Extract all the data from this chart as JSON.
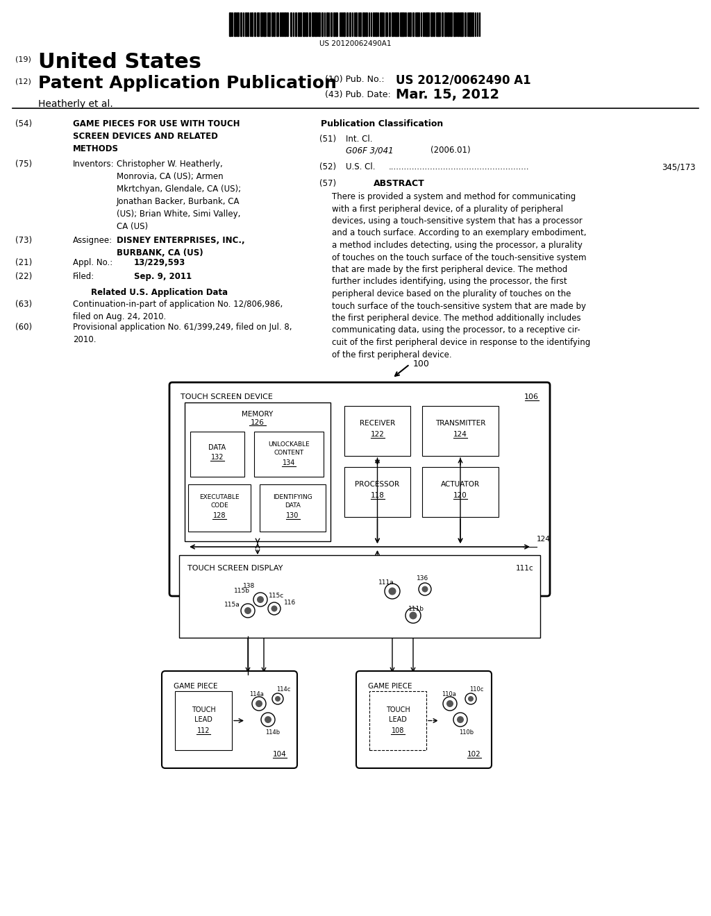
{
  "bg_color": "#ffffff",
  "barcode_text": "US 20120062490A1",
  "title_19": "(19)",
  "title_country": "United States",
  "title_12": "(12)",
  "title_type": "Patent Application Publication",
  "title_inventors_label": "Heatherly et al.",
  "pub_no_label": "(10) Pub. No.:",
  "pub_no_value": "US 2012/0062490 A1",
  "pub_date_label": "(43) Pub. Date:",
  "pub_date_value": "Mar. 15, 2012",
  "field54_label": "(54)",
  "field54_title": "GAME PIECES FOR USE WITH TOUCH\nSCREEN DEVICES AND RELATED\nMETHODS",
  "field75_label": "(75)",
  "field75_title": "Inventors:",
  "field75_text": "Christopher W. Heatherly,\nMonrovia, CA (US); Armen\nMkrtchyan, Glendale, CA (US);\nJonathan Backer, Burbank, CA\n(US); Brian White, Simi Valley,\nCA (US)",
  "field73_label": "(73)",
  "field73_title": "Assignee:",
  "field73_text": "DISNEY ENTERPRISES, INC.,\nBURBANK, CA (US)",
  "field21_label": "(21)",
  "field21_title": "Appl. No.:",
  "field21_value": "13/229,593",
  "field22_label": "(22)",
  "field22_title": "Filed:",
  "field22_value": "Sep. 9, 2011",
  "related_header": "Related U.S. Application Data",
  "field63_label": "(63)",
  "field63_text": "Continuation-in-part of application No. 12/806,986,\nfiled on Aug. 24, 2010.",
  "field60_label": "(60)",
  "field60_text": "Provisional application No. 61/399,249, filed on Jul. 8,\n2010.",
  "pub_class_header": "Publication Classification",
  "field51_label": "(51)",
  "field51_title": "Int. Cl.",
  "field51_class": "G06F 3/041",
  "field51_year": "(2006.01)",
  "field52_label": "(52)",
  "field52_title": "U.S. Cl.",
  "field52_dots": "......................................................",
  "field52_value": "345/173",
  "field57_label": "(57)",
  "field57_title": "ABSTRACT",
  "abstract_text": "There is provided a system and method for communicating\nwith a first peripheral device, of a plurality of peripheral\ndevices, using a touch-sensitive system that has a processor\nand a touch surface. According to an exemplary embodiment,\na method includes detecting, using the processor, a plurality\nof touches on the touch surface of the touch-sensitive system\nthat are made by the first peripheral device. The method\nfurther includes identifying, using the processor, the first\nperipheral device based on the plurality of touches on the\ntouch surface of the touch-sensitive system that are made by\nthe first peripheral device. The method additionally includes\ncommunicating data, using the processor, to a receptive cir-\ncuit of the first peripheral device in response to the identifying\nof the first peripheral device."
}
